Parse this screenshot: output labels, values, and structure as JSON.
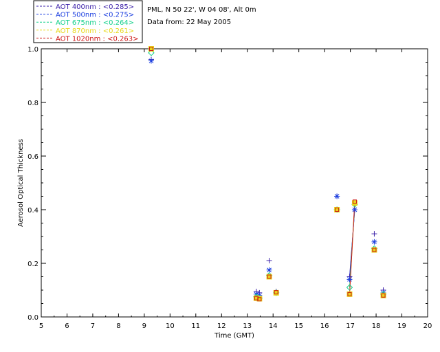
{
  "chart_data": {
    "type": "scatter",
    "title_lines": [
      "PML, N 50 22', W 04 08', Alt 0m",
      "Data from: 22 May 2005"
    ],
    "xlabel": "Time (GMT)",
    "ylabel": "Aerosol Optical Thickness",
    "xlim": [
      5,
      20
    ],
    "ylim": [
      0,
      1
    ],
    "x_ticks": [
      "5",
      "6",
      "7",
      "8",
      "9",
      "10",
      "11",
      "12",
      "13",
      "14",
      "15",
      "16",
      "17",
      "18",
      "19",
      "20"
    ],
    "y_ticks": [
      "0.0",
      "0.2",
      "0.4",
      "0.6",
      "0.8",
      "1.0"
    ],
    "x_tick_values": [
      5,
      6,
      7,
      8,
      9,
      10,
      11,
      12,
      13,
      14,
      15,
      16,
      17,
      18,
      19,
      20
    ],
    "y_tick_values": [
      0,
      0.2,
      0.4,
      0.6,
      0.8,
      1.0
    ],
    "x": [
      9.27,
      13.35,
      13.47,
      13.85,
      14.12,
      16.48,
      16.97,
      17.17,
      17.93,
      18.28
    ],
    "legend_position": "top-left",
    "series": [
      {
        "name": "AOT  400nm : <0.285>",
        "color": "#3a1fa8",
        "marker": "plus",
        "values": [
          0.96,
          0.095,
          0.09,
          0.21,
          0.095,
          0.45,
          0.15,
          0.4,
          0.31,
          0.1
        ]
      },
      {
        "name": "AOT  500nm : <0.275>",
        "color": "#1c3fe0",
        "marker": "star",
        "values": [
          0.955,
          0.085,
          0.08,
          0.175,
          0.09,
          0.45,
          0.14,
          0.4,
          0.28,
          0.09
        ]
      },
      {
        "name": "AOT  675nm : <0.264>",
        "color": "#12d08a",
        "marker": "diamond",
        "values": [
          0.985,
          0.075,
          0.07,
          0.155,
          0.09,
          0.4,
          0.11,
          0.42,
          0.255,
          0.085
        ]
      },
      {
        "name": "AOT  870nm : <0.261>",
        "color": "#e8d81a",
        "marker": "square",
        "values": [
          1.0,
          0.07,
          0.068,
          0.15,
          0.09,
          0.4,
          0.085,
          0.425,
          0.25,
          0.08
        ]
      },
      {
        "name": "AOT 1020nm : <0.263>",
        "color": "#cc1818",
        "marker": "square",
        "values": [
          1.0,
          0.07,
          0.066,
          0.15,
          0.092,
          0.4,
          0.085,
          0.43,
          0.25,
          0.08
        ]
      }
    ]
  }
}
